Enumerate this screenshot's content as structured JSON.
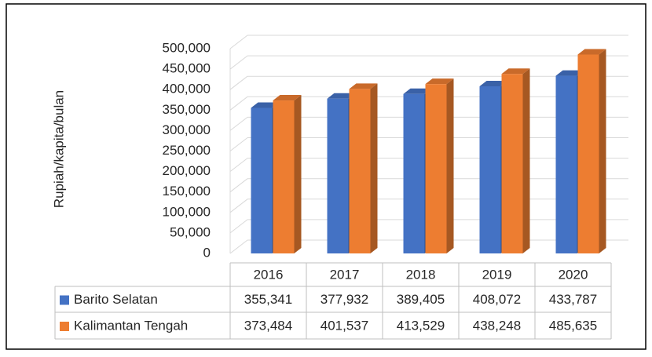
{
  "chart_data": {
    "type": "bar3d",
    "ylabel": "Rupiah/kapita/bulan",
    "categories": [
      "2016",
      "2017",
      "2018",
      "2019",
      "2020"
    ],
    "series": [
      {
        "name": "Barito Selatan",
        "color": "#4472c4",
        "values": [
          355341,
          377932,
          389405,
          408072,
          433787
        ],
        "value_labels": [
          "355,341",
          "377,932",
          "389,405",
          "408,072",
          "433,787"
        ]
      },
      {
        "name": "Kalimantan Tengah",
        "color": "#ed7d31",
        "values": [
          373484,
          401537,
          413529,
          438248,
          485635
        ],
        "value_labels": [
          "373,484",
          "401,537",
          "413,529",
          "438,248",
          "485,635"
        ]
      }
    ],
    "ylim": [
      0,
      500000
    ],
    "yticks": [
      0,
      {
        "value": 50000,
        "label": "50,000"
      },
      {
        "value": 100000,
        "label": "100,000"
      },
      {
        "value": 150000,
        "label": "150,000"
      },
      {
        "value": 200000,
        "label": "200,000"
      },
      {
        "value": 250000,
        "label": "250,000"
      },
      {
        "value": 300000,
        "label": "300,000"
      },
      {
        "value": 350000,
        "label": "350,000"
      },
      {
        "value": 400000,
        "label": "400,000"
      },
      {
        "value": 450000,
        "label": "450,000"
      },
      {
        "value": 500000,
        "label": "500,000"
      }
    ],
    "grid": true
  }
}
